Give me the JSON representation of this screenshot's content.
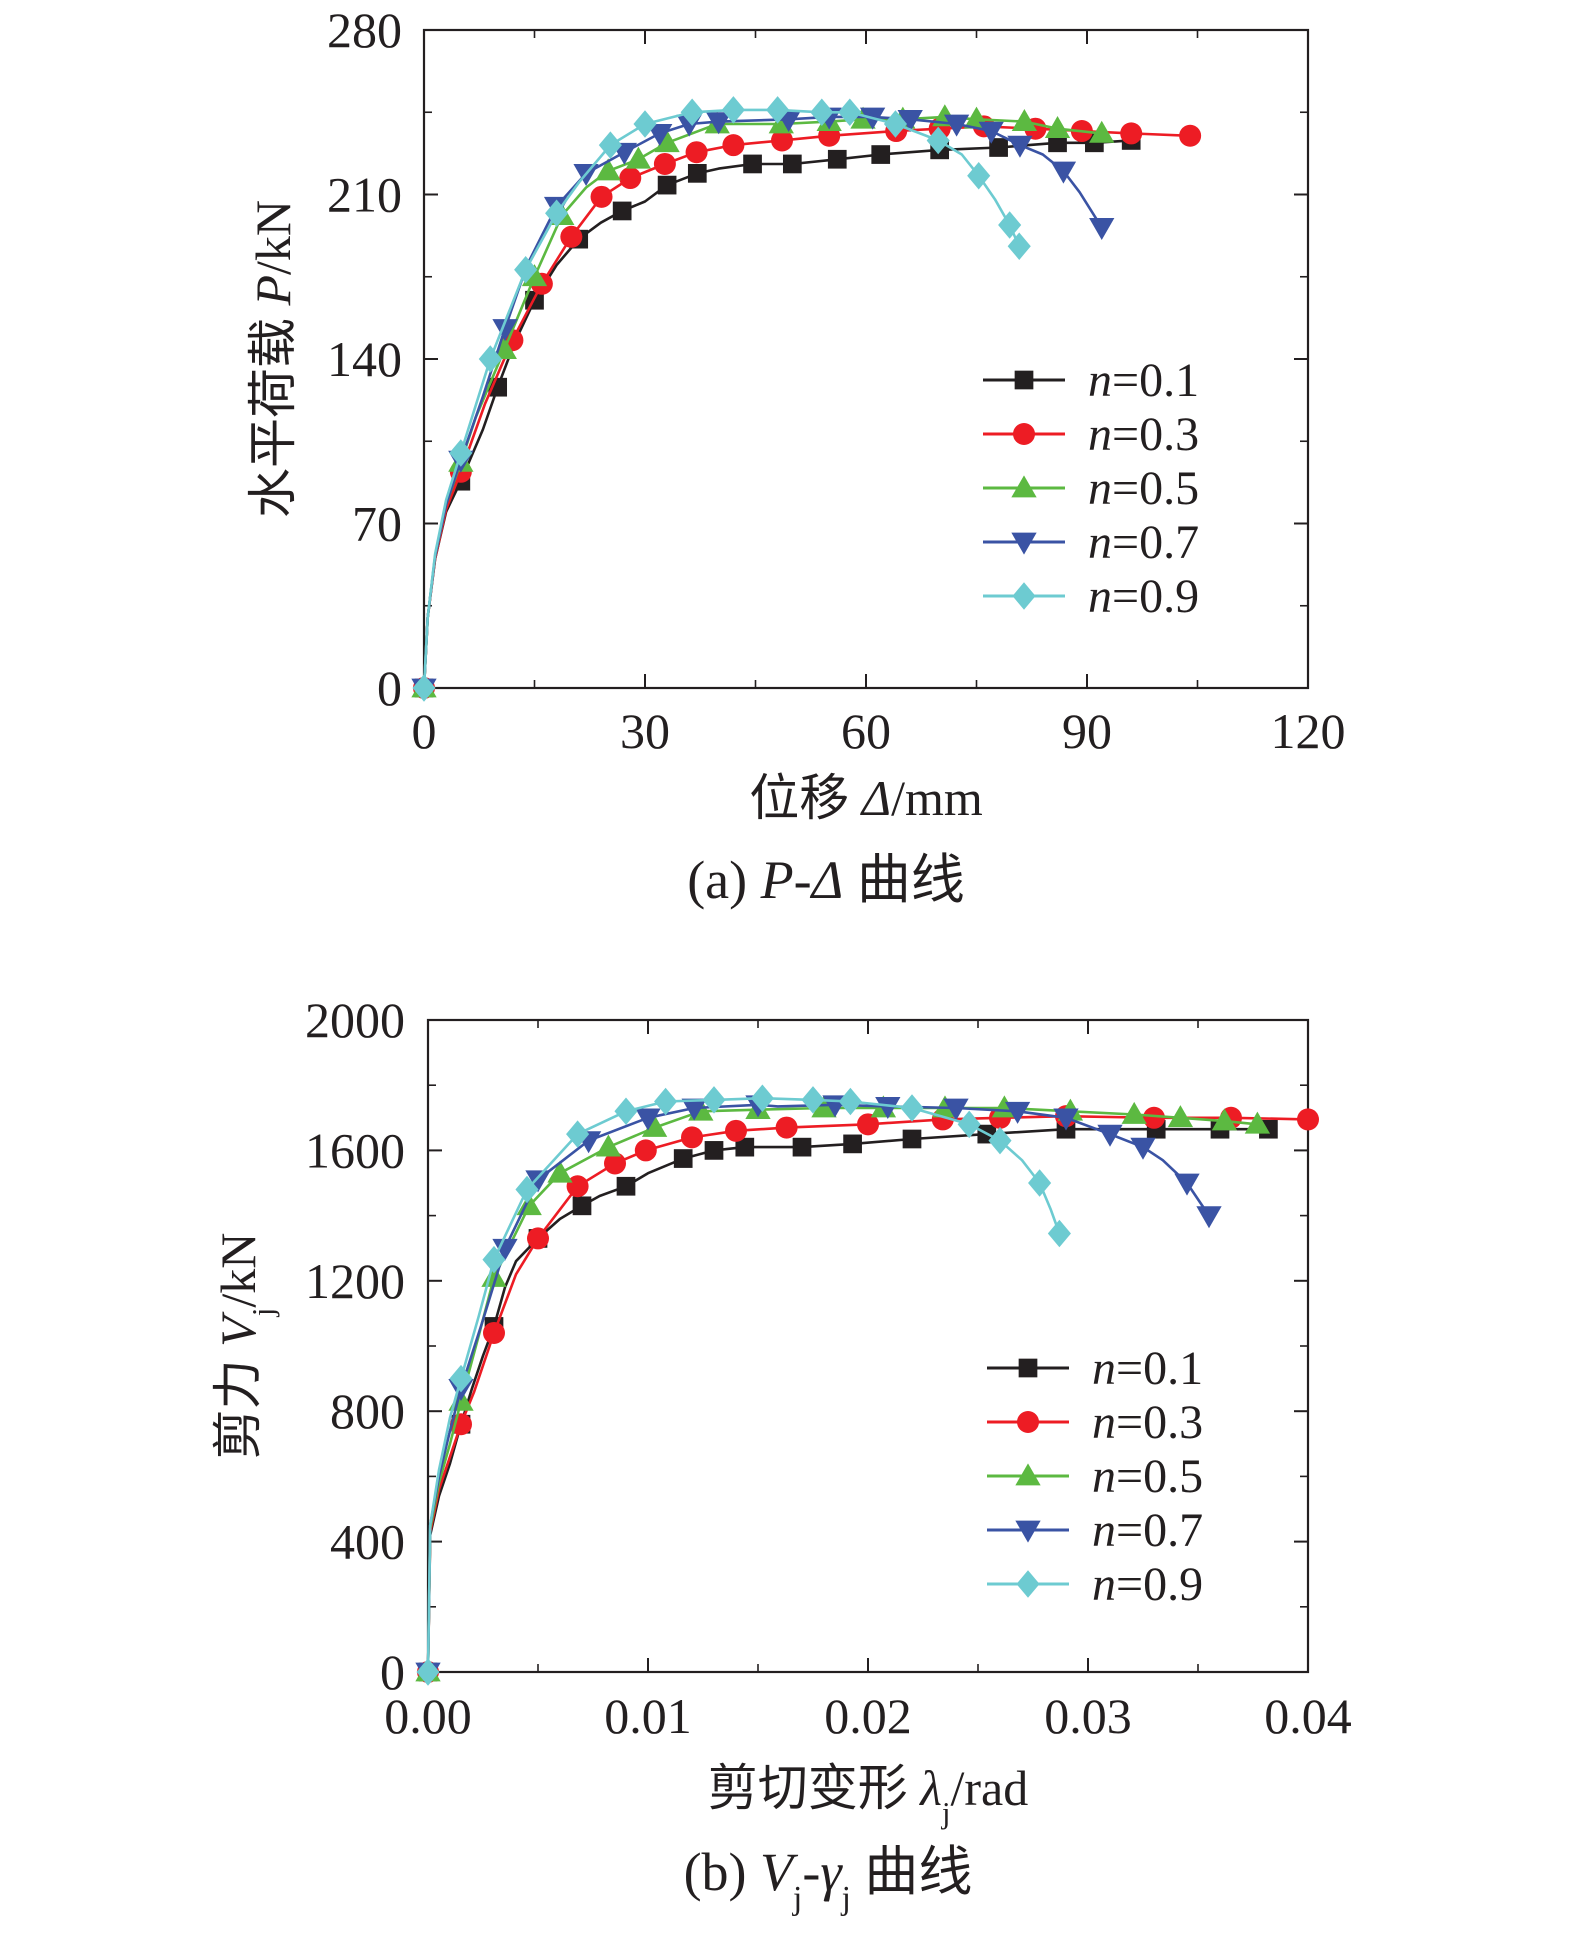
{
  "chart_data": [
    {
      "type": "line",
      "caption": "(a) P-Δ 曲线",
      "caption_parts": [
        "(a) ",
        "P",
        "-",
        "Δ",
        " 曲线"
      ],
      "xlabel": "位移 Δ/mm",
      "xlabel_parts": [
        "位移 ",
        "Δ",
        "/mm"
      ],
      "ylabel": "水平荷载 P/kN",
      "ylabel_parts": [
        "水平荷载 ",
        "P",
        "/kN"
      ],
      "xlim": [
        0,
        120
      ],
      "ylim": [
        0,
        280
      ],
      "xticks": [
        0,
        30,
        60,
        90,
        120
      ],
      "yticks": [
        0,
        70,
        140,
        210,
        280
      ],
      "xtick_labels": [
        "0",
        "30",
        "60",
        "90",
        "120"
      ],
      "ytick_labels": [
        "0",
        "70",
        "140",
        "210",
        "280"
      ],
      "legend_position": "right-middle",
      "series": [
        {
          "name": "n=0.1",
          "var": "n",
          "val": "=0.1",
          "color": "#231f20",
          "marker": "square",
          "x": [
            0,
            0.5,
            1.5,
            3,
            5,
            8,
            10,
            12.3,
            15,
            18,
            21,
            24,
            26.9,
            30,
            33,
            37.1,
            40,
            44.6,
            50,
            56.1,
            62,
            70,
            78,
            86,
            91,
            96
          ],
          "y": [
            0,
            30,
            55,
            75,
            88,
            110,
            128,
            147,
            165,
            180,
            191,
            198,
            203,
            207,
            214,
            219,
            221,
            223,
            223,
            225,
            227,
            229,
            230,
            232,
            232,
            233
          ]
        },
        {
          "name": "n=0.3",
          "var": "n",
          "val": "=0.3",
          "color": "#ed1c24",
          "marker": "circle",
          "x": [
            0,
            0.5,
            1.5,
            3,
            5,
            8.3,
            12,
            16,
            20,
            24.1,
            28,
            32.7,
            37,
            42,
            48.6,
            55,
            64.1,
            70,
            76,
            83,
            89.3,
            96,
            104
          ],
          "y": [
            0,
            30,
            55,
            76,
            92,
            121,
            148,
            172,
            192,
            209,
            217,
            223,
            228,
            231,
            233,
            235,
            237,
            238,
            239,
            238,
            237,
            236,
            235
          ]
        },
        {
          "name": "n=0.5",
          "var": "n",
          "val": "=0.5",
          "color": "#5cb941",
          "marker": "triangle",
          "x": [
            0,
            0.5,
            1.5,
            3,
            5,
            7,
            10.9,
            15,
            18.7,
            22,
            25,
            29.1,
            33,
            39.8,
            48.5,
            55,
            59.6,
            65,
            70.7,
            75,
            81.5,
            86,
            92
          ],
          "y": [
            0,
            30,
            56,
            78,
            96,
            115,
            144,
            175,
            201,
            213,
            220,
            225,
            232,
            240,
            240,
            241,
            242,
            242,
            243,
            242,
            241,
            238,
            236
          ]
        },
        {
          "name": "n=0.7",
          "var": "n",
          "val": "=0.7",
          "color": "#3a53a4",
          "marker": "triangle-down",
          "x": [
            0,
            0.5,
            1.5,
            3,
            5,
            8,
            11,
            14,
            18,
            22,
            27.2,
            32,
            36,
            40,
            49.5,
            55,
            60.9,
            66,
            72.3,
            77,
            80.9,
            84,
            86.8,
            89,
            92
          ],
          "y": [
            0,
            30,
            56,
            78,
            97,
            124,
            153,
            180,
            205,
            219,
            228,
            236,
            240,
            241,
            242,
            243,
            243,
            242,
            240,
            237,
            231,
            227,
            220,
            211,
            196
          ]
        },
        {
          "name": "n=0.9",
          "var": "n",
          "val": "=0.9",
          "color": "#6dcbd1",
          "marker": "diamond",
          "x": [
            0,
            0.5,
            1.5,
            3,
            5,
            9,
            13.8,
            18,
            21,
            25.3,
            30,
            36.4,
            42,
            48,
            54,
            57.8,
            64,
            69.8,
            73,
            75.3,
            77.5,
            79.5,
            80.8
          ],
          "y": [
            0,
            30,
            57,
            80,
            100,
            140,
            178,
            202,
            215,
            231,
            240,
            245,
            246,
            246,
            245,
            245,
            240,
            233,
            227,
            218,
            208,
            197,
            188
          ]
        }
      ]
    },
    {
      "type": "line",
      "caption": "(b) Vj-γj 曲线",
      "caption_parts": [
        "(b) ",
        "V",
        "j",
        "-",
        "γ",
        "j",
        " 曲线"
      ],
      "xlabel": "剪切变形 λj/rad",
      "xlabel_parts": [
        "剪切变形 ",
        "λ",
        "j",
        "/rad"
      ],
      "ylabel": "剪力 Vj/kN",
      "ylabel_parts": [
        "剪力 ",
        "V",
        "j",
        "/kN"
      ],
      "xlim": [
        0,
        0.04
      ],
      "ylim": [
        0,
        2000
      ],
      "xticks": [
        0,
        0.01,
        0.02,
        0.03,
        0.04
      ],
      "yticks": [
        0,
        400,
        800,
        1200,
        1600,
        2000
      ],
      "xtick_labels": [
        "0.00",
        "0.01",
        "0.02",
        "0.03",
        "0.04"
      ],
      "ytick_labels": [
        "0",
        "400",
        "800",
        "1200",
        "1600",
        "2000"
      ],
      "legend_position": "right-middle",
      "series": [
        {
          "name": "n=0.1",
          "var": "n",
          "val": "=0.1",
          "color": "#231f20",
          "marker": "square",
          "x": [
            0,
            0.0001,
            0.0005,
            0.001,
            0.0015,
            0.002,
            0.0025,
            0.003,
            0.0035,
            0.004,
            0.005,
            0.006,
            0.007,
            0.0078,
            0.009,
            0.01,
            0.0116,
            0.013,
            0.0144,
            0.017,
            0.0193,
            0.022,
            0.0254,
            0.029,
            0.0331,
            0.036,
            0.0382
          ],
          "y": [
            0,
            420,
            540,
            640,
            760,
            870,
            970,
            1060,
            1180,
            1260,
            1330,
            1390,
            1430,
            1460,
            1490,
            1530,
            1575,
            1600,
            1610,
            1610,
            1620,
            1635,
            1650,
            1665,
            1665,
            1665,
            1665
          ]
        },
        {
          "name": "n=0.3",
          "var": "n",
          "val": "=0.3",
          "color": "#ed1c24",
          "marker": "circle",
          "x": [
            0,
            0.0001,
            0.0005,
            0.001,
            0.0015,
            0.0021,
            0.003,
            0.004,
            0.005,
            0.0068,
            0.0085,
            0.0099,
            0.012,
            0.014,
            0.0163,
            0.02,
            0.0234,
            0.026,
            0.029,
            0.033,
            0.0365,
            0.04
          ],
          "y": [
            0,
            430,
            560,
            660,
            760,
            860,
            1040,
            1220,
            1330,
            1490,
            1560,
            1600,
            1640,
            1660,
            1670,
            1680,
            1695,
            1700,
            1705,
            1700,
            1700,
            1695
          ]
        },
        {
          "name": "n=0.5",
          "var": "n",
          "val": "=0.5",
          "color": "#5cb941",
          "marker": "triangle",
          "x": [
            0,
            0.0001,
            0.0005,
            0.001,
            0.0015,
            0.0023,
            0.003,
            0.0046,
            0.006,
            0.0082,
            0.0103,
            0.0124,
            0.015,
            0.018,
            0.0207,
            0.0235,
            0.0262,
            0.0292,
            0.0321,
            0.0342,
            0.0362,
            0.0377
          ],
          "y": [
            0,
            440,
            580,
            700,
            830,
            1030,
            1210,
            1430,
            1530,
            1610,
            1670,
            1720,
            1725,
            1730,
            1730,
            1730,
            1730,
            1720,
            1710,
            1700,
            1690,
            1680
          ]
        },
        {
          "name": "n=0.7",
          "var": "n",
          "val": "=0.7",
          "color": "#3a53a4",
          "marker": "triangle-down",
          "x": [
            0,
            0.0001,
            0.0005,
            0.001,
            0.0015,
            0.0025,
            0.0035,
            0.005,
            0.0073,
            0.01,
            0.0121,
            0.015,
            0.0159,
            0.0185,
            0.0209,
            0.024,
            0.0268,
            0.029,
            0.031,
            0.0325,
            0.0334,
            0.0345,
            0.0355
          ],
          "y": [
            0,
            450,
            600,
            740,
            870,
            1080,
            1300,
            1510,
            1630,
            1700,
            1730,
            1740,
            1735,
            1740,
            1735,
            1730,
            1720,
            1700,
            1650,
            1610,
            1570,
            1500,
            1400
          ]
        },
        {
          "name": "n=0.9",
          "var": "n",
          "val": "=0.9",
          "color": "#6dcbd1",
          "marker": "diamond",
          "x": [
            0,
            0.0001,
            0.0005,
            0.001,
            0.0015,
            0.0023,
            0.003,
            0.0045,
            0.0068,
            0.009,
            0.0108,
            0.013,
            0.0152,
            0.0175,
            0.0192,
            0.022,
            0.0246,
            0.026,
            0.027,
            0.0278,
            0.0283,
            0.0287
          ],
          "y": [
            0,
            450,
            620,
            780,
            900,
            1090,
            1265,
            1480,
            1650,
            1720,
            1750,
            1755,
            1760,
            1755,
            1750,
            1730,
            1680,
            1630,
            1570,
            1500,
            1420,
            1345
          ]
        }
      ]
    }
  ]
}
